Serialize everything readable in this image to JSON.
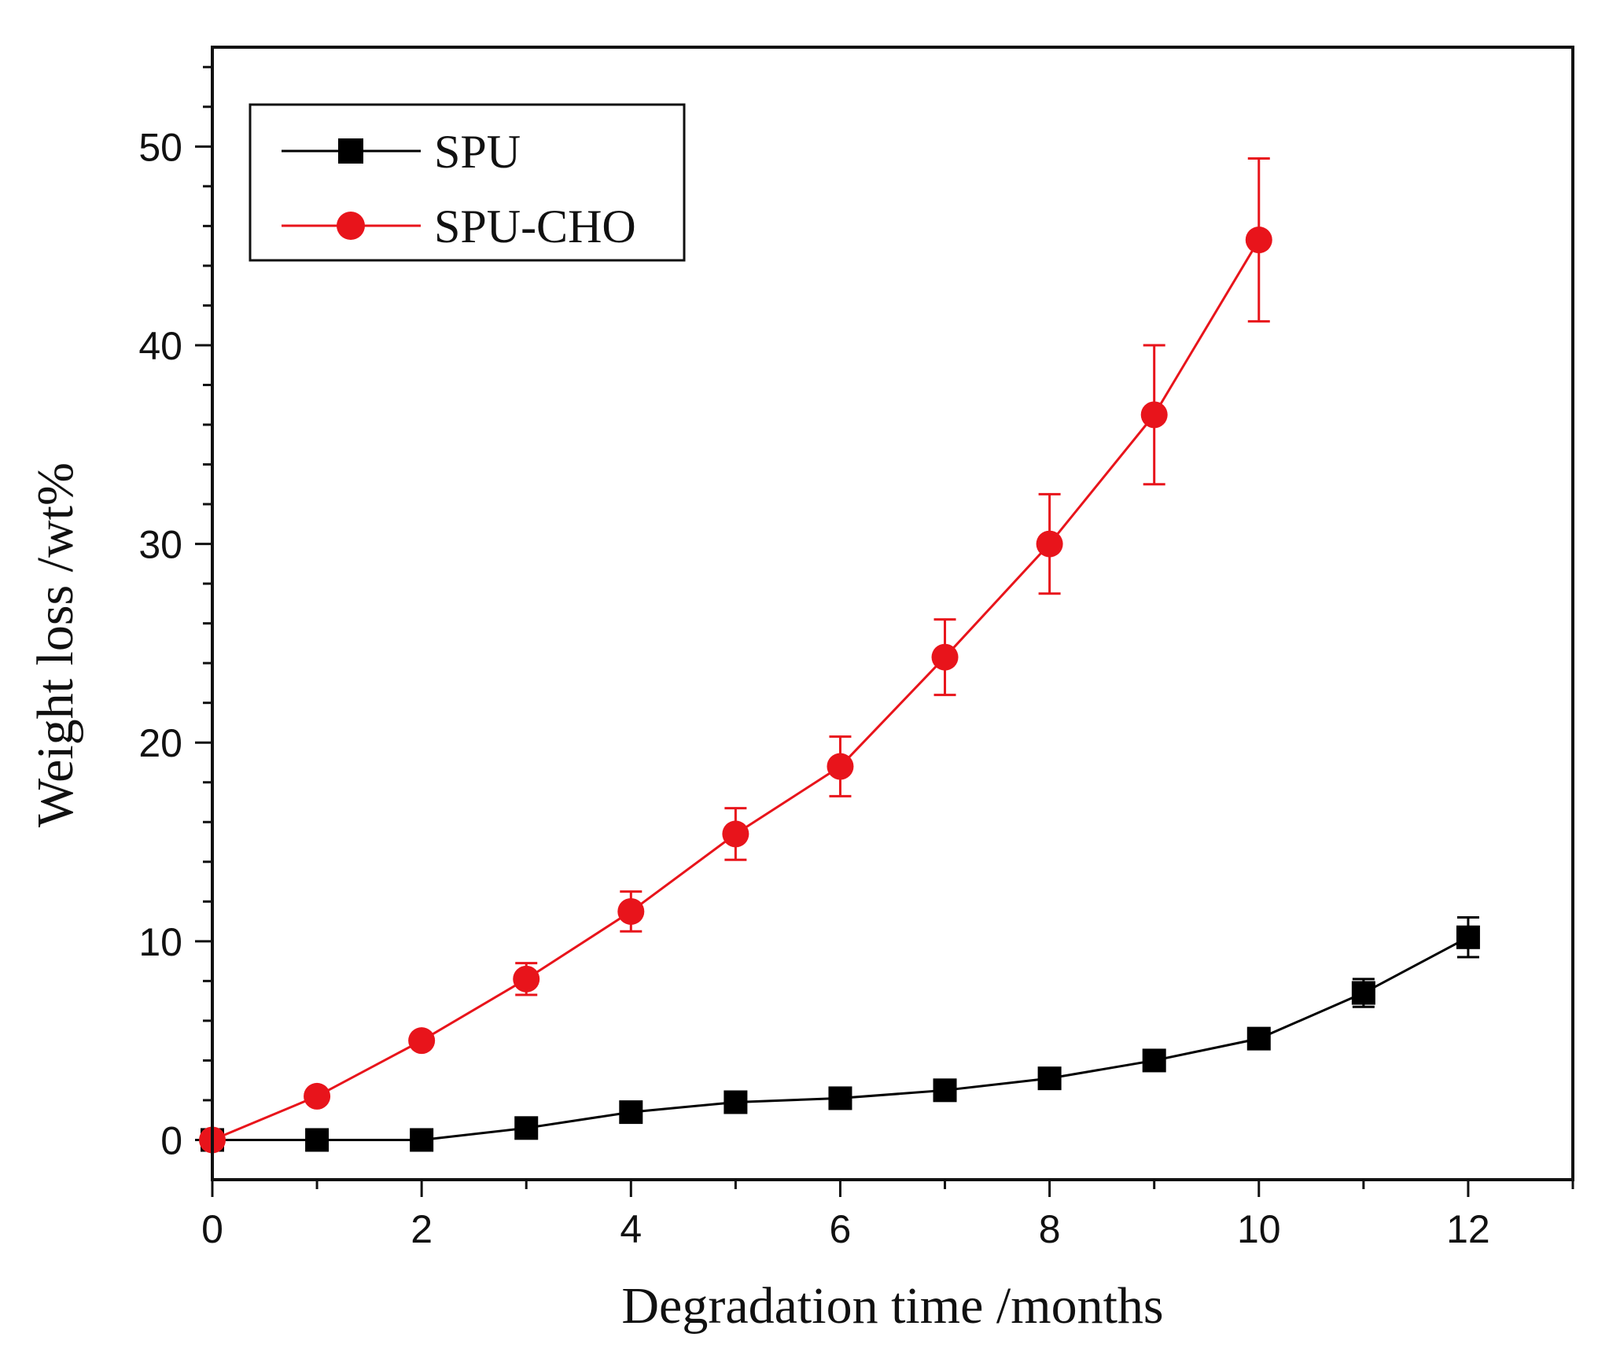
{
  "chart_data": {
    "type": "line",
    "title": "",
    "xlabel": "Degradation time /months",
    "ylabel": "Weight loss /wt%",
    "xlim": [
      0,
      13
    ],
    "ylim": [
      -2,
      55
    ],
    "x_ticks": [
      0,
      2,
      4,
      6,
      8,
      10,
      12
    ],
    "x_tick_labels": [
      "0",
      "2",
      "4",
      "6",
      "8",
      "10",
      "12"
    ],
    "y_ticks": [
      0,
      10,
      20,
      30,
      40,
      50
    ],
    "y_tick_labels": [
      "0",
      "10",
      "20",
      "30",
      "40",
      "50"
    ],
    "grid": false,
    "legend_position": "top-left",
    "series": [
      {
        "name": "SPU",
        "color": "#000000",
        "marker": "square",
        "x": [
          0,
          1,
          2,
          3,
          4,
          5,
          6,
          7,
          8,
          9,
          10,
          11,
          12
        ],
        "y": [
          0,
          0,
          0,
          0.6,
          1.4,
          1.9,
          2.1,
          2.5,
          3.1,
          4.0,
          5.1,
          7.4,
          10.2
        ],
        "error": [
          0,
          0,
          0,
          0,
          0,
          0,
          0,
          0.3,
          0.4,
          0.3,
          0.4,
          0.7,
          1.0
        ]
      },
      {
        "name": "SPU-CHO",
        "color": "#e8141b",
        "marker": "circle",
        "x": [
          0,
          1,
          2,
          3,
          4,
          5,
          6,
          7,
          8,
          9,
          10
        ],
        "y": [
          0,
          2.2,
          5.0,
          8.1,
          11.5,
          15.4,
          18.8,
          24.3,
          30.0,
          36.5,
          45.3
        ],
        "error": [
          0,
          0,
          0,
          0.8,
          1.0,
          1.3,
          1.5,
          1.9,
          2.5,
          3.5,
          4.1
        ]
      }
    ]
  }
}
